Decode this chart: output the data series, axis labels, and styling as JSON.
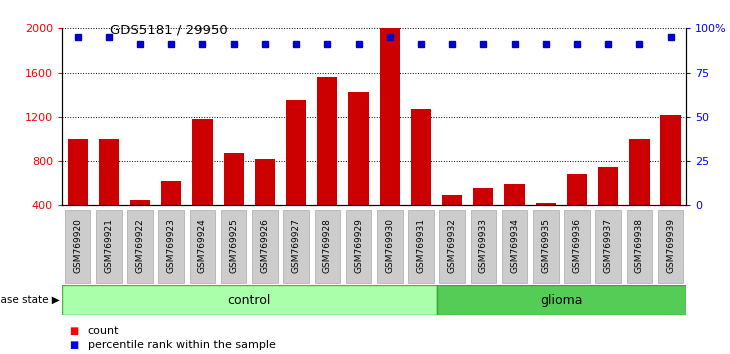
{
  "title": "GDS5181 / 29950",
  "samples": [
    "GSM769920",
    "GSM769921",
    "GSM769922",
    "GSM769923",
    "GSM769924",
    "GSM769925",
    "GSM769926",
    "GSM769927",
    "GSM769928",
    "GSM769929",
    "GSM769930",
    "GSM769931",
    "GSM769932",
    "GSM769933",
    "GSM769934",
    "GSM769935",
    "GSM769936",
    "GSM769937",
    "GSM769938",
    "GSM769939"
  ],
  "counts": [
    1000,
    1000,
    450,
    620,
    1180,
    870,
    820,
    1350,
    1560,
    1420,
    2000,
    1270,
    490,
    560,
    590,
    420,
    680,
    750,
    1000,
    1220
  ],
  "percentile_left_axis": [
    1920,
    1920,
    1860,
    1860,
    1860,
    1860,
    1860,
    1860,
    1860,
    1860,
    1920,
    1860,
    1860,
    1860,
    1860,
    1860,
    1860,
    1860,
    1860,
    1920
  ],
  "control_count": 12,
  "glioma_count": 8,
  "total_count": 20,
  "ylim_left": [
    400,
    2000
  ],
  "ylim_right": [
    0,
    100
  ],
  "yticks_left": [
    400,
    800,
    1200,
    1600,
    2000
  ],
  "yticks_right": [
    0,
    25,
    50,
    75,
    100
  ],
  "bar_color": "#cc0000",
  "dot_color": "#0000cc",
  "control_color": "#aaffaa",
  "glioma_color": "#55cc55",
  "tick_bg_color": "#cccccc",
  "tick_border_color": "#aaaaaa"
}
